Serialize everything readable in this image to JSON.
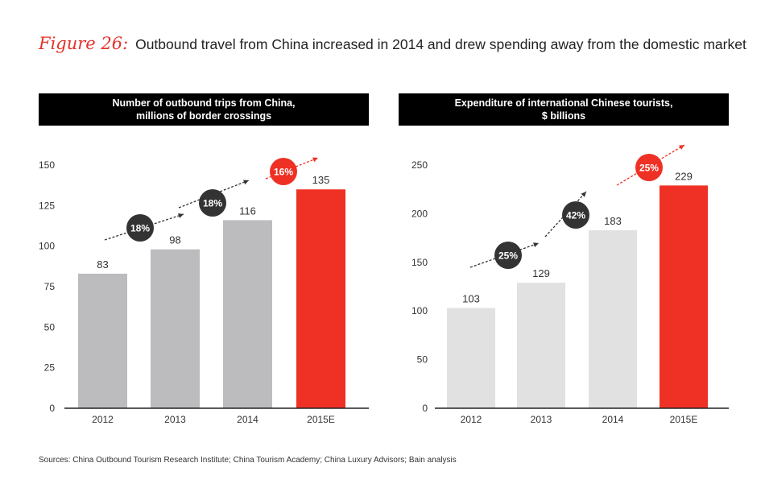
{
  "figure": {
    "number": "Figure 26:",
    "title": "Outbound travel from China increased in 2014 and drew spending away from the domestic market"
  },
  "sources": "Sources: China Outbound Tourism Research Institute; China Tourism Academy; China Luxury Advisors; Bain analysis",
  "colors": {
    "bar_gray": "#bcbcbe",
    "bar_light": "#e1e1e2",
    "accent_red": "#ee3124",
    "bubble_dark": "#333333"
  },
  "chart_data": [
    {
      "type": "bar",
      "title_line1": "Number of outbound trips from China,",
      "title_line2": "millions of border crossings",
      "categories": [
        "2012",
        "2013",
        "2014",
        "2015E"
      ],
      "values": [
        83,
        98,
        116,
        135
      ],
      "yticks": [
        0,
        25,
        50,
        75,
        100,
        125,
        150
      ],
      "ylim": [
        0,
        150
      ],
      "growth_labels": [
        "18%",
        "18%",
        "16%"
      ],
      "highlight_last": true
    },
    {
      "type": "bar",
      "title_line1": "Expenditure of international Chinese tourists,",
      "title_line2": "$ billions",
      "categories": [
        "2012",
        "2013",
        "2014",
        "2015E"
      ],
      "values": [
        103,
        129,
        183,
        229
      ],
      "yticks": [
        0,
        50,
        100,
        150,
        200,
        250
      ],
      "ylim": [
        0,
        250
      ],
      "growth_labels": [
        "25%",
        "42%",
        "25%"
      ],
      "highlight_last": true
    }
  ]
}
